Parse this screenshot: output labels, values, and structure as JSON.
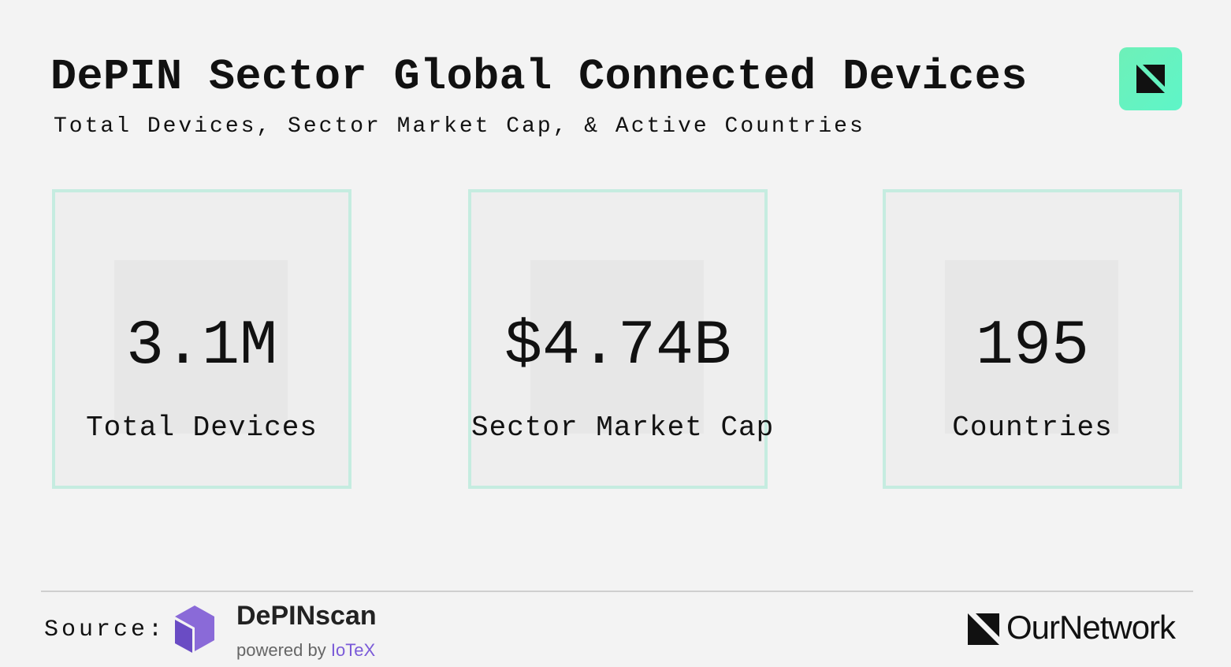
{
  "header": {
    "title": "DePIN Sector Global Connected Devices",
    "subtitle": "Total Devices, Sector Market Cap, & Active Countries"
  },
  "cards": [
    {
      "value": "3.1M",
      "label": "Total Devices"
    },
    {
      "value": "$4.74B",
      "label": "Sector Market Cap"
    },
    {
      "value": "195",
      "label": "Countries"
    }
  ],
  "footer": {
    "source_label": "Source:",
    "source_name": "DePINscan",
    "powered_by": "powered by",
    "powered_by_brand": "IoTeX",
    "brand": "OurNetwork"
  }
}
